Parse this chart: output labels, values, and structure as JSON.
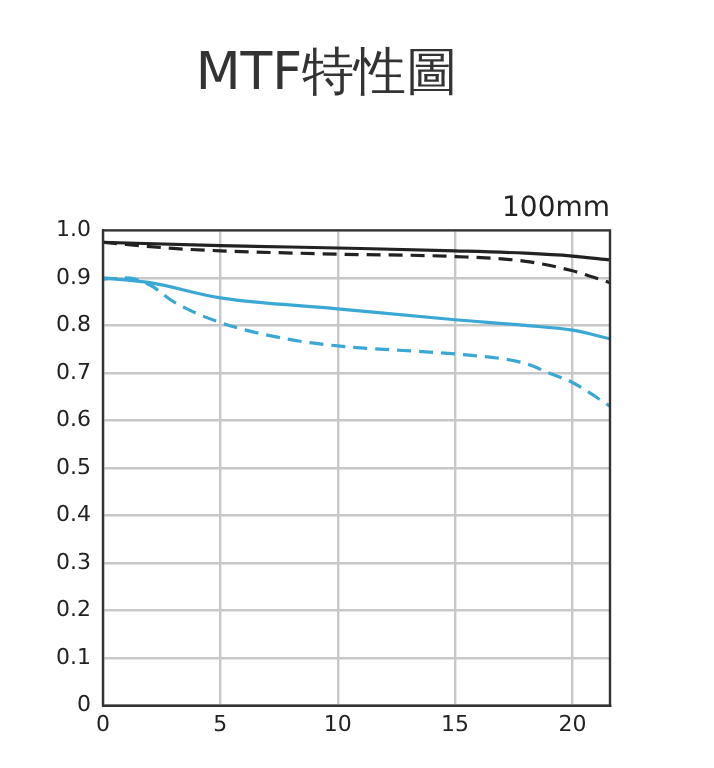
{
  "chart_data": {
    "type": "line",
    "title": "MTF特性圖",
    "annotations": [
      "100mm"
    ],
    "xlim": [
      0,
      21.6
    ],
    "xticks": [
      0,
      5,
      10,
      15,
      20
    ],
    "ylim": [
      0,
      1
    ],
    "yticks": [
      {
        "value": 0,
        "label": "0"
      },
      0.1,
      0.2,
      0.3,
      0.4,
      0.5,
      0.6,
      0.7,
      0.8,
      0.9,
      {
        "value": 1,
        "label": "1.0"
      }
    ],
    "grid": true,
    "legend": false,
    "marker": "none",
    "series": [
      {
        "color": "#222222",
        "line_style": "solid",
        "x": [
          0,
          5,
          10,
          15,
          18,
          20,
          21.6
        ],
        "values": [
          0.975,
          0.968,
          0.963,
          0.957,
          0.952,
          0.946,
          0.938
        ]
      },
      {
        "color": "#222222",
        "line_style": "dashed",
        "x": [
          0,
          3,
          5,
          10,
          15,
          18,
          20,
          21.6
        ],
        "values": [
          0.975,
          0.962,
          0.957,
          0.95,
          0.945,
          0.935,
          0.915,
          0.89
        ]
      },
      {
        "color": "#3aa8d4",
        "line_style": "solid",
        "x": [
          0,
          2,
          5,
          10,
          15,
          18,
          20,
          21.6
        ],
        "values": [
          0.9,
          0.89,
          0.858,
          0.835,
          0.812,
          0.8,
          0.79,
          0.772
        ]
      },
      {
        "color": "#3aa8d4",
        "line_style": "dashed",
        "x": [
          0,
          1,
          2,
          3,
          5,
          8,
          10,
          15,
          17,
          18,
          19,
          20,
          21.6
        ],
        "values": [
          0.897,
          0.9,
          0.885,
          0.85,
          0.806,
          0.77,
          0.757,
          0.74,
          0.73,
          0.72,
          0.7,
          0.68,
          0.63
        ]
      }
    ]
  }
}
